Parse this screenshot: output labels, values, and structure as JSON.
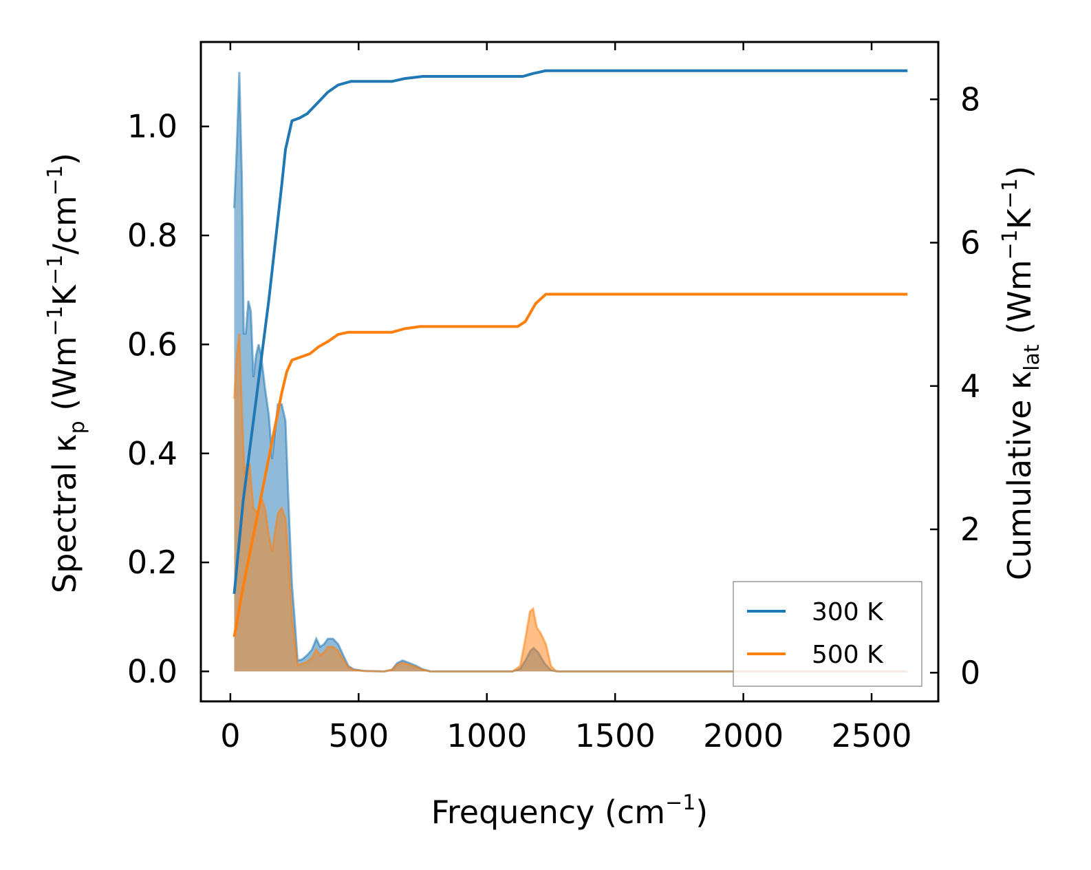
{
  "chart_data": {
    "type": "line",
    "xlabel": {
      "main": "Frequency (cm",
      "sup": "−1",
      "tail": ")"
    },
    "ylabel_left": {
      "prefix": "Spectral κ",
      "sub": "p",
      "units1": " (Wm",
      "sup1": "−1",
      "units2": "K",
      "sup2": "−1",
      "units3": "/cm",
      "sup3": "−1",
      "tail": ")"
    },
    "ylabel_right": {
      "prefix": "Cumulative κ",
      "sub": "lat",
      "units1": " (Wm",
      "sup1": "−1",
      "units2": "K",
      "sup2": "−1",
      "tail": ")"
    },
    "xlim": [
      -115,
      2760
    ],
    "ylim_left": [
      -0.055,
      1.155
    ],
    "ylim_right": [
      -0.4,
      8.8
    ],
    "x_ticks": [
      0,
      500,
      1000,
      1500,
      2000,
      2500
    ],
    "x_tick_labels": [
      "0",
      "500",
      "1000",
      "1500",
      "2000",
      "2500"
    ],
    "y_left_ticks": [
      0.0,
      0.2,
      0.4,
      0.6,
      0.8,
      1.0
    ],
    "y_left_tick_labels": [
      "0.0",
      "0.2",
      "0.4",
      "0.6",
      "0.8",
      "1.0"
    ],
    "y_right_ticks": [
      0,
      2,
      4,
      6,
      8
    ],
    "y_right_tick_labels": [
      "0",
      "2",
      "4",
      "6",
      "8"
    ],
    "legend": {
      "position": "lower right",
      "entries": [
        "300 K",
        "500 K"
      ]
    },
    "colors": {
      "s300": "#1f77b4",
      "s500": "#ff7f0e"
    },
    "series": [
      {
        "name": "300 K",
        "spectral": [
          [
            15,
            0.85
          ],
          [
            25,
            0.96
          ],
          [
            35,
            1.1
          ],
          [
            45,
            0.9
          ],
          [
            52,
            0.62
          ],
          [
            60,
            0.62
          ],
          [
            70,
            0.68
          ],
          [
            80,
            0.66
          ],
          [
            90,
            0.54
          ],
          [
            100,
            0.58
          ],
          [
            110,
            0.6
          ],
          [
            120,
            0.58
          ],
          [
            135,
            0.52
          ],
          [
            150,
            0.47
          ],
          [
            163,
            0.39
          ],
          [
            172,
            0.43
          ],
          [
            185,
            0.49
          ],
          [
            200,
            0.49
          ],
          [
            215,
            0.46
          ],
          [
            225,
            0.33
          ],
          [
            240,
            0.16
          ],
          [
            250,
            0.1
          ],
          [
            262,
            0.02
          ],
          [
            280,
            0.022
          ],
          [
            300,
            0.03
          ],
          [
            318,
            0.04
          ],
          [
            335,
            0.06
          ],
          [
            350,
            0.045
          ],
          [
            365,
            0.05
          ],
          [
            380,
            0.06
          ],
          [
            400,
            0.06
          ],
          [
            420,
            0.05
          ],
          [
            440,
            0.03
          ],
          [
            460,
            0.01
          ],
          [
            480,
            0.004
          ],
          [
            520,
            0.001
          ],
          [
            600,
            0.0
          ],
          [
            630,
            0.003
          ],
          [
            650,
            0.015
          ],
          [
            672,
            0.02
          ],
          [
            700,
            0.015
          ],
          [
            725,
            0.01
          ],
          [
            750,
            0.004
          ],
          [
            780,
            0.0
          ],
          [
            1100,
            0.0
          ],
          [
            1130,
            0.005
          ],
          [
            1150,
            0.02
          ],
          [
            1170,
            0.038
          ],
          [
            1182,
            0.043
          ],
          [
            1200,
            0.035
          ],
          [
            1225,
            0.015
          ],
          [
            1250,
            0.002
          ],
          [
            1280,
            0.0
          ],
          [
            2640,
            0.0
          ]
        ],
        "cumulative": [
          [
            15,
            1.1
          ],
          [
            50,
            2.4
          ],
          [
            100,
            3.8
          ],
          [
            150,
            5.2
          ],
          [
            200,
            6.8
          ],
          [
            215,
            7.3
          ],
          [
            240,
            7.7
          ],
          [
            270,
            7.74
          ],
          [
            300,
            7.8
          ],
          [
            340,
            7.95
          ],
          [
            380,
            8.1
          ],
          [
            420,
            8.2
          ],
          [
            470,
            8.25
          ],
          [
            550,
            8.25
          ],
          [
            630,
            8.25
          ],
          [
            680,
            8.29
          ],
          [
            750,
            8.32
          ],
          [
            1100,
            8.32
          ],
          [
            1140,
            8.32
          ],
          [
            1180,
            8.36
          ],
          [
            1230,
            8.4
          ],
          [
            2640,
            8.4
          ]
        ]
      },
      {
        "name": "500 K",
        "spectral": [
          [
            15,
            0.5
          ],
          [
            25,
            0.58
          ],
          [
            35,
            0.62
          ],
          [
            45,
            0.48
          ],
          [
            55,
            0.36
          ],
          [
            65,
            0.38
          ],
          [
            75,
            0.38
          ],
          [
            90,
            0.3
          ],
          [
            105,
            0.29
          ],
          [
            120,
            0.32
          ],
          [
            135,
            0.3
          ],
          [
            150,
            0.25
          ],
          [
            163,
            0.22
          ],
          [
            172,
            0.25
          ],
          [
            185,
            0.29
          ],
          [
            200,
            0.3
          ],
          [
            215,
            0.28
          ],
          [
            228,
            0.2
          ],
          [
            240,
            0.1
          ],
          [
            250,
            0.06
          ],
          [
            262,
            0.012
          ],
          [
            280,
            0.014
          ],
          [
            300,
            0.018
          ],
          [
            318,
            0.025
          ],
          [
            335,
            0.04
          ],
          [
            350,
            0.03
          ],
          [
            365,
            0.035
          ],
          [
            380,
            0.045
          ],
          [
            400,
            0.045
          ],
          [
            420,
            0.038
          ],
          [
            440,
            0.022
          ],
          [
            460,
            0.008
          ],
          [
            480,
            0.003
          ],
          [
            520,
            0.001
          ],
          [
            600,
            0.0
          ],
          [
            630,
            0.003
          ],
          [
            650,
            0.012
          ],
          [
            672,
            0.016
          ],
          [
            700,
            0.012
          ],
          [
            725,
            0.008
          ],
          [
            750,
            0.003
          ],
          [
            780,
            0.0
          ],
          [
            1100,
            0.0
          ],
          [
            1130,
            0.01
          ],
          [
            1150,
            0.06
          ],
          [
            1168,
            0.11
          ],
          [
            1180,
            0.115
          ],
          [
            1195,
            0.08
          ],
          [
            1210,
            0.07
          ],
          [
            1230,
            0.05
          ],
          [
            1250,
            0.01
          ],
          [
            1270,
            0.0
          ],
          [
            2640,
            0.0
          ]
        ],
        "cumulative": [
          [
            15,
            0.5
          ],
          [
            50,
            1.2
          ],
          [
            100,
            2.1
          ],
          [
            150,
            3.0
          ],
          [
            200,
            3.9
          ],
          [
            220,
            4.2
          ],
          [
            240,
            4.36
          ],
          [
            270,
            4.4
          ],
          [
            310,
            4.45
          ],
          [
            345,
            4.55
          ],
          [
            380,
            4.62
          ],
          [
            420,
            4.72
          ],
          [
            460,
            4.75
          ],
          [
            630,
            4.75
          ],
          [
            680,
            4.8
          ],
          [
            740,
            4.83
          ],
          [
            1120,
            4.83
          ],
          [
            1150,
            4.9
          ],
          [
            1190,
            5.15
          ],
          [
            1230,
            5.28
          ],
          [
            2640,
            5.28
          ]
        ]
      }
    ]
  }
}
